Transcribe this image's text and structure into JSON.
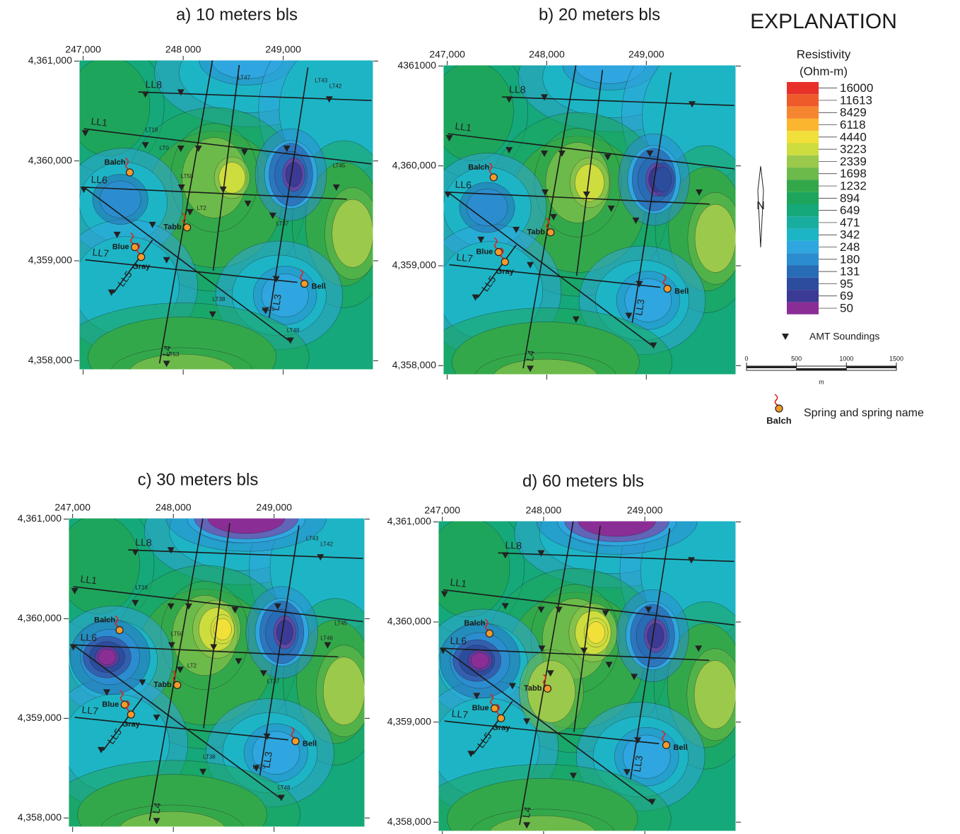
{
  "map": {
    "xlim": [
      246960,
      249900
    ],
    "ylim": [
      4357910,
      4361010
    ]
  },
  "panels": [
    {
      "title": "a) 10 meters bls",
      "xticks": [
        {
          "value": 247000,
          "label": "247,000"
        },
        {
          "value": 248000,
          "label": "248 000"
        },
        {
          "value": 249000,
          "label": "249,000"
        }
      ],
      "yticks": [
        {
          "value": 4361000,
          "label": "4,361,000"
        },
        {
          "value": 4360000,
          "label": "4,360,000"
        },
        {
          "value": 4359000,
          "label": "4,359,000"
        },
        {
          "value": 4358000,
          "label": "4,358,000"
        }
      ],
      "labels": [
        {
          "text": "LT43",
          "x": 249317,
          "y": 4360802
        },
        {
          "text": "LT42",
          "x": 249460,
          "y": 4360746
        },
        {
          "text": "LT47",
          "x": 248546,
          "y": 4360830
        },
        {
          "text": "LT18",
          "x": 247622,
          "y": 4360307
        },
        {
          "text": "LT0",
          "x": 247763,
          "y": 4360125
        },
        {
          "text": "LT50",
          "x": 247976,
          "y": 4359843
        },
        {
          "text": "LT2",
          "x": 248138,
          "y": 4359524
        },
        {
          "text": "LT37",
          "x": 248930,
          "y": 4359369
        },
        {
          "text": "LT38",
          "x": 248294,
          "y": 4358610
        },
        {
          "text": "LT25",
          "x": 248789,
          "y": 4358511
        },
        {
          "text": "LT48",
          "x": 249036,
          "y": 4358300
        },
        {
          "text": "LT53",
          "x": 247834,
          "y": 4358060
        },
        {
          "text": "LT45",
          "x": 249495,
          "y": 4359948
        }
      ]
    },
    {
      "title": "b) 20 meters bls",
      "xticks": [
        {
          "value": 247000,
          "label": "247,000"
        },
        {
          "value": 248000,
          "label": "248,000"
        },
        {
          "value": 249000,
          "label": "249,000"
        }
      ],
      "yticks": [
        4361000,
        {
          "value": 4360000,
          "label": "4,360,000"
        },
        {
          "value": 4359000,
          "label": "4,359,000"
        },
        {
          "value": 4358000,
          "label": "4,358,000"
        }
      ]
    },
    {
      "title": "c) 30 meters bls",
      "xticks": [
        {
          "value": 247000,
          "label": "247,000"
        },
        {
          "value": 248000,
          "label": "248,000"
        },
        {
          "value": 249000,
          "label": "249,000"
        }
      ],
      "yticks": [
        {
          "value": 4361000,
          "label": "4,361,000"
        },
        {
          "value": 4360000,
          "label": "4,360,000"
        },
        {
          "value": 4359000,
          "label": "4,359,000"
        },
        {
          "value": 4358000,
          "label": "4,358,000"
        }
      ],
      "labels": [
        {
          "text": "LT43",
          "x": 249317,
          "y": 4360802
        },
        {
          "text": "LT42",
          "x": 249460,
          "y": 4360746
        },
        {
          "text": "LT18",
          "x": 247622,
          "y": 4360307
        },
        {
          "text": "LT50",
          "x": 247976,
          "y": 4359843
        },
        {
          "text": "LT2",
          "x": 248138,
          "y": 4359524
        },
        {
          "text": "LT46",
          "x": 249460,
          "y": 4359800
        },
        {
          "text": "LT45",
          "x": 249600,
          "y": 4359950
        },
        {
          "text": "LT37",
          "x": 248930,
          "y": 4359369
        },
        {
          "text": "LT38",
          "x": 248294,
          "y": 4358610
        },
        {
          "text": "LT25",
          "x": 248789,
          "y": 4358511
        },
        {
          "text": "LT48",
          "x": 249036,
          "y": 4358300
        }
      ]
    },
    {
      "title": "d) 60 meters bls",
      "xticks": [
        {
          "value": 247000,
          "label": "247,000"
        },
        {
          "value": 248000,
          "label": "248,000"
        },
        {
          "value": 249000,
          "label": "249,000"
        }
      ],
      "yticks": [
        {
          "value": 4361000,
          "label": "4,361,000"
        },
        {
          "value": 4360000,
          "label": "4,360,000"
        },
        {
          "value": 4359000,
          "label": "4,359,000"
        },
        {
          "value": 4358000,
          "label": "4,358,000"
        }
      ]
    }
  ],
  "soundings": [
    [
      247622,
      4360668
    ],
    [
      247976,
      4360689
    ],
    [
      249460,
      4360619
    ],
    [
      247021,
      4360280
    ],
    [
      247622,
      4360160
    ],
    [
      247976,
      4360125
    ],
    [
      248152,
      4360125
    ],
    [
      248612,
      4360089
    ],
    [
      249036,
      4360125
    ],
    [
      247983,
      4359736
    ],
    [
      248400,
      4359715
    ],
    [
      248647,
      4359574
    ],
    [
      249531,
      4359736
    ],
    [
      247007,
      4359715
    ],
    [
      247339,
      4359263
    ],
    [
      247693,
      4359362
    ],
    [
      248068,
      4359489
    ],
    [
      248895,
      4359454
    ],
    [
      247834,
      4359009
    ],
    [
      247283,
      4358684
    ],
    [
      248294,
      4358465
    ],
    [
      248930,
      4358819
    ],
    [
      248824,
      4358501
    ],
    [
      249072,
      4358204
    ],
    [
      247834,
      4357971
    ]
  ],
  "lines": [
    {
      "label": "LL8",
      "from": [
        247551,
        4360690
      ],
      "to": [
        249883,
        4360605
      ]
    },
    {
      "label": "LL1",
      "from": [
        247007,
        4360322
      ],
      "to": [
        249883,
        4359970
      ]
    },
    {
      "label": "LL6",
      "from": [
        247007,
        4359737
      ],
      "to": [
        249636,
        4359617
      ]
    },
    {
      "label": "LL7",
      "from": [
        247021,
        4359010
      ],
      "to": [
        249141,
        4358784
      ]
    },
    {
      "label": "LL5",
      "from": [
        247304,
        4358678
      ],
      "to": [
        247693,
        4359208
      ]
    },
    {
      "label": "L4",
      "from": [
        247763,
        4357973
      ],
      "to": [
        248293,
        4361007
      ]
    },
    {
      "label": "LL3",
      "from": [
        248859,
        4358430
      ],
      "to": [
        249247,
        4360936
      ]
    },
    {
      "from": [
        247007,
        4359737
      ],
      "to": [
        249072,
        4358190
      ]
    },
    {
      "from": [
        248300,
        4358900
      ],
      "to": [
        248560,
        4360960
      ]
    }
  ],
  "springs": [
    {
      "name": "Balch",
      "x": 247466,
      "y": 4359885
    },
    {
      "name": "Tabb",
      "x": 248039,
      "y": 4359334
    },
    {
      "name": "Blue",
      "x": 247516,
      "y": 4359137
    },
    {
      "name": "Gray",
      "x": 247580,
      "y": 4359038
    },
    {
      "name": "Bell",
      "x": 249212,
      "y": 4358770
    }
  ],
  "legend": {
    "title": "EXPLANATION",
    "heading": [
      "Resistivity",
      "(Ohm-m)"
    ],
    "levels": [
      {
        "value": 16000,
        "color": "#e8302a"
      },
      {
        "value": 11613,
        "color": "#ef5a2b"
      },
      {
        "value": 8429,
        "color": "#f5862f"
      },
      {
        "value": 6118,
        "color": "#fbb52e"
      },
      {
        "value": 4440,
        "color": "#f1e03a"
      },
      {
        "value": 3223,
        "color": "#cddd3e"
      },
      {
        "value": 2339,
        "color": "#9bc94b"
      },
      {
        "value": 1698,
        "color": "#6cba4a"
      },
      {
        "value": 1232,
        "color": "#33a84b"
      },
      {
        "value": 894,
        "color": "#1ea55c"
      },
      {
        "value": 649,
        "color": "#14a87a"
      },
      {
        "value": 471,
        "color": "#18ad9f"
      },
      {
        "value": 342,
        "color": "#1db5c6"
      },
      {
        "value": 248,
        "color": "#2fa6df"
      },
      {
        "value": 180,
        "color": "#2b8dcf"
      },
      {
        "value": 131,
        "color": "#286cb5"
      },
      {
        "value": 95,
        "color": "#2c4c9e"
      },
      {
        "value": 69,
        "color": "#3b3a94"
      },
      {
        "value": 50,
        "color": "#8a2e96"
      }
    ],
    "soundings": "AMT Soundings",
    "scale": {
      "ticks": [
        0,
        500,
        1000,
        1500
      ],
      "unit": "m"
    },
    "north": "N",
    "spring_label": "Spring and spring name",
    "spring_example": "Balch"
  }
}
